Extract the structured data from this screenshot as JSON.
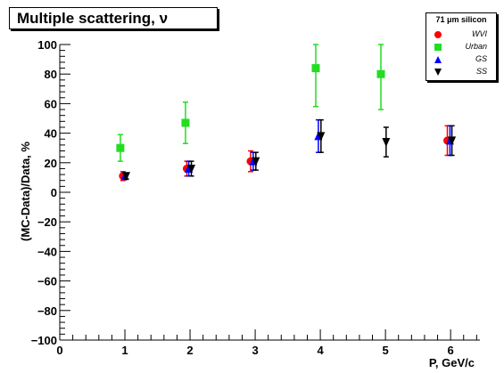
{
  "chart_data": {
    "type": "scatter",
    "title": "Multiple scattering, ν",
    "xlabel": "P, GeV/c",
    "ylabel": "(MC-Data)/Data, %",
    "xlim": [
      0,
      6.45
    ],
    "ylim": [
      -100,
      100
    ],
    "x_ticks": [
      "0",
      "1",
      "2",
      "3",
      "4",
      "5",
      "6"
    ],
    "y_ticks": [
      "−100",
      "−80",
      "−60",
      "−40",
      "−20",
      "0",
      "20",
      "40",
      "60",
      "80",
      "100"
    ],
    "legend_title": "71 μm silicon",
    "legend_position": "top-right",
    "grid": false,
    "series": [
      {
        "name": "WVI",
        "color": "#ff0000",
        "marker": "circle",
        "points": [
          {
            "x": 0.97,
            "y": 11,
            "err": 3
          },
          {
            "x": 1.95,
            "y": 16,
            "err": 5
          },
          {
            "x": 2.93,
            "y": 21,
            "err": 7
          },
          {
            "x": 5.95,
            "y": 35,
            "err": 10
          }
        ]
      },
      {
        "name": "Urban",
        "color": "#22dd22",
        "marker": "square",
        "points": [
          {
            "x": 0.93,
            "y": 30,
            "err": 9
          },
          {
            "x": 1.93,
            "y": 47,
            "err": 14
          },
          {
            "x": 3.93,
            "y": 84,
            "err": 26
          },
          {
            "x": 4.93,
            "y": 80,
            "err": 24
          }
        ]
      },
      {
        "name": "GS",
        "color": "#0000ff",
        "marker": "triangle-up",
        "points": [
          {
            "x": 1.0,
            "y": 11,
            "err": 2
          },
          {
            "x": 1.98,
            "y": 16,
            "err": 5
          },
          {
            "x": 2.97,
            "y": 21,
            "err": 6
          },
          {
            "x": 3.97,
            "y": 38,
            "err": 11
          },
          {
            "x": 5.99,
            "y": 35,
            "err": 10
          }
        ]
      },
      {
        "name": "SS",
        "color": "#000000",
        "marker": "triangle-down",
        "points": [
          {
            "x": 1.02,
            "y": 11,
            "err": 2
          },
          {
            "x": 2.02,
            "y": 16,
            "err": 5
          },
          {
            "x": 3.01,
            "y": 21,
            "err": 6
          },
          {
            "x": 4.01,
            "y": 38,
            "err": 11
          },
          {
            "x": 5.01,
            "y": 34,
            "err": 10
          },
          {
            "x": 6.02,
            "y": 35,
            "err": 10
          }
        ]
      }
    ]
  }
}
